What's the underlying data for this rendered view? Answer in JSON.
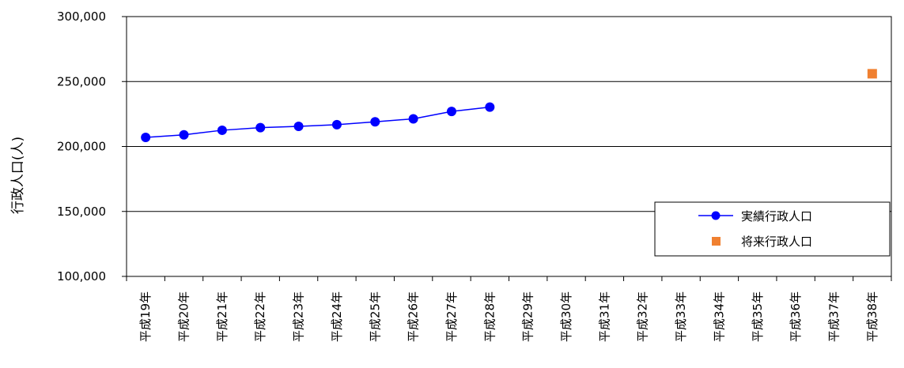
{
  "chart_data": {
    "type": "line",
    "title": "",
    "xlabel": "",
    "ylabel": "行政人口(人)",
    "categories": [
      "平成19年",
      "平成20年",
      "平成21年",
      "平成22年",
      "平成23年",
      "平成24年",
      "平成25年",
      "平成26年",
      "平成27年",
      "平成28年",
      "平成29年",
      "平成30年",
      "平成31年",
      "平成32年",
      "平成33年",
      "平成34年",
      "平成35年",
      "平成36年",
      "平成37年",
      "平成38年"
    ],
    "series": [
      {
        "name": "実績行政人口",
        "marker": "circle",
        "color": "#0000FF",
        "values": [
          207000,
          209000,
          212500,
          214500,
          215500,
          216800,
          219000,
          221300,
          227000,
          230300,
          null,
          null,
          null,
          null,
          null,
          null,
          null,
          null,
          null,
          null
        ]
      },
      {
        "name": "将来行政人口",
        "marker": "square",
        "color": "#F08030",
        "values": [
          null,
          null,
          null,
          null,
          null,
          null,
          null,
          null,
          null,
          null,
          null,
          null,
          null,
          null,
          null,
          null,
          null,
          null,
          null,
          256000
        ]
      }
    ],
    "ylim": [
      100000,
      300000
    ],
    "yticks": [
      "100,000",
      "150,000",
      "200,000",
      "250,000",
      "300,000"
    ],
    "ytick_values": [
      100000,
      150000,
      200000,
      250000,
      300000
    ],
    "grid": "horizontal",
    "legend_position": "lower-right"
  }
}
